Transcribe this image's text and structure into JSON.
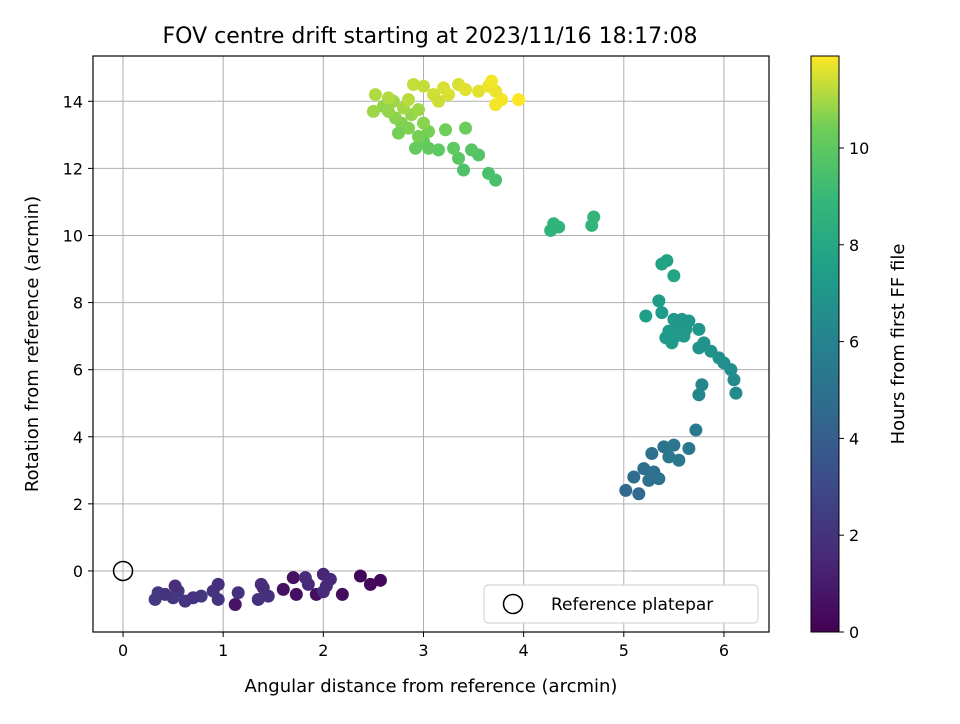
{
  "chart_data": {
    "type": "scatter",
    "title": "FOV centre drift starting at 2023/11/16 18:17:08",
    "xlabel": "Angular distance from reference (arcmin)",
    "ylabel": "Rotation from reference (arcmin)",
    "xlim": [
      -0.3,
      6.45
    ],
    "ylim": [
      -1.82,
      15.35
    ],
    "x_ticks": [
      0,
      1,
      2,
      3,
      4,
      5,
      6
    ],
    "y_ticks": [
      0,
      2,
      4,
      6,
      8,
      10,
      12,
      14
    ],
    "grid": true,
    "colorbar": {
      "label": "Hours from first FF file",
      "range": [
        0,
        11.9
      ],
      "ticks": [
        0,
        2,
        4,
        6,
        8,
        10
      ],
      "colormap": "viridis"
    },
    "legend": {
      "entries": [
        "Reference platepar"
      ],
      "position": "lower-right"
    },
    "reference_point": {
      "x": 0,
      "y": 0
    },
    "points": [
      {
        "x": 2.37,
        "y": -0.15,
        "t": 0.2
      },
      {
        "x": 2.57,
        "y": -0.28,
        "t": 0.3
      },
      {
        "x": 2.47,
        "y": -0.4,
        "t": 0.3
      },
      {
        "x": 2.19,
        "y": -0.7,
        "t": 0.4
      },
      {
        "x": 1.93,
        "y": -0.7,
        "t": 0.5
      },
      {
        "x": 1.73,
        "y": -0.7,
        "t": 0.5
      },
      {
        "x": 1.6,
        "y": -0.55,
        "t": 0.6
      },
      {
        "x": 1.7,
        "y": -0.2,
        "t": 0.6
      },
      {
        "x": 1.12,
        "y": -1.0,
        "t": 0.7
      },
      {
        "x": 2.0,
        "y": -0.1,
        "t": 1.4
      },
      {
        "x": 2.07,
        "y": -0.25,
        "t": 1.5
      },
      {
        "x": 2.03,
        "y": -0.45,
        "t": 1.5
      },
      {
        "x": 2.0,
        "y": -0.62,
        "t": 1.6
      },
      {
        "x": 1.85,
        "y": -0.4,
        "t": 1.6
      },
      {
        "x": 1.82,
        "y": -0.2,
        "t": 1.7
      },
      {
        "x": 1.45,
        "y": -0.75,
        "t": 1.8
      },
      {
        "x": 1.4,
        "y": -0.5,
        "t": 1.8
      },
      {
        "x": 1.35,
        "y": -0.85,
        "t": 1.9
      },
      {
        "x": 1.15,
        "y": -0.65,
        "t": 1.9
      },
      {
        "x": 0.95,
        "y": -0.85,
        "t": 2.0
      },
      {
        "x": 0.9,
        "y": -0.6,
        "t": 2.0
      },
      {
        "x": 0.78,
        "y": -0.75,
        "t": 2.1
      },
      {
        "x": 0.62,
        "y": -0.9,
        "t": 2.1
      },
      {
        "x": 0.55,
        "y": -0.6,
        "t": 2.2
      },
      {
        "x": 0.5,
        "y": -0.8,
        "t": 2.2
      },
      {
        "x": 0.35,
        "y": -0.65,
        "t": 2.3
      },
      {
        "x": 0.32,
        "y": -0.85,
        "t": 2.3
      },
      {
        "x": 0.42,
        "y": -0.7,
        "t": 2.0
      },
      {
        "x": 0.7,
        "y": -0.8,
        "t": 1.9
      },
      {
        "x": 0.95,
        "y": -0.4,
        "t": 1.8
      },
      {
        "x": 0.52,
        "y": -0.45,
        "t": 1.7
      },
      {
        "x": 1.38,
        "y": -0.4,
        "t": 1.7
      },
      {
        "x": 5.02,
        "y": 2.4,
        "t": 4.6
      },
      {
        "x": 5.15,
        "y": 2.3,
        "t": 4.6
      },
      {
        "x": 5.1,
        "y": 2.8,
        "t": 4.7
      },
      {
        "x": 5.2,
        "y": 3.05,
        "t": 4.8
      },
      {
        "x": 5.28,
        "y": 3.5,
        "t": 4.9
      },
      {
        "x": 5.35,
        "y": 2.75,
        "t": 5.0
      },
      {
        "x": 5.25,
        "y": 2.7,
        "t": 5.0
      },
      {
        "x": 5.4,
        "y": 3.7,
        "t": 5.1
      },
      {
        "x": 5.5,
        "y": 3.75,
        "t": 5.2
      },
      {
        "x": 5.55,
        "y": 3.3,
        "t": 5.3
      },
      {
        "x": 5.45,
        "y": 3.4,
        "t": 5.3
      },
      {
        "x": 5.65,
        "y": 3.65,
        "t": 5.4
      },
      {
        "x": 5.72,
        "y": 4.2,
        "t": 5.5
      },
      {
        "x": 5.3,
        "y": 2.95,
        "t": 4.9
      },
      {
        "x": 5.75,
        "y": 5.25,
        "t": 6.1
      },
      {
        "x": 5.78,
        "y": 5.55,
        "t": 6.1
      },
      {
        "x": 6.12,
        "y": 5.3,
        "t": 6.3
      },
      {
        "x": 6.1,
        "y": 5.7,
        "t": 6.4
      },
      {
        "x": 6.07,
        "y": 6.0,
        "t": 6.5
      },
      {
        "x": 6.0,
        "y": 6.2,
        "t": 6.6
      },
      {
        "x": 5.95,
        "y": 6.35,
        "t": 6.7
      },
      {
        "x": 5.87,
        "y": 6.55,
        "t": 6.8
      },
      {
        "x": 5.75,
        "y": 6.65,
        "t": 6.9
      },
      {
        "x": 5.8,
        "y": 6.8,
        "t": 6.9
      },
      {
        "x": 5.75,
        "y": 7.2,
        "t": 7.0
      },
      {
        "x": 5.65,
        "y": 7.45,
        "t": 7.0
      },
      {
        "x": 5.55,
        "y": 7.35,
        "t": 7.1
      },
      {
        "x": 5.5,
        "y": 7.5,
        "t": 7.1
      },
      {
        "x": 5.45,
        "y": 7.15,
        "t": 7.2
      },
      {
        "x": 5.42,
        "y": 6.95,
        "t": 7.2
      },
      {
        "x": 5.48,
        "y": 6.8,
        "t": 7.3
      },
      {
        "x": 5.6,
        "y": 7.0,
        "t": 7.3
      },
      {
        "x": 5.38,
        "y": 7.7,
        "t": 7.4
      },
      {
        "x": 5.35,
        "y": 8.05,
        "t": 7.4
      },
      {
        "x": 5.22,
        "y": 7.6,
        "t": 7.5
      },
      {
        "x": 5.38,
        "y": 9.15,
        "t": 7.7
      },
      {
        "x": 5.43,
        "y": 9.25,
        "t": 7.7
      },
      {
        "x": 5.5,
        "y": 8.8,
        "t": 7.8
      },
      {
        "x": 5.58,
        "y": 7.5,
        "t": 7.0
      },
      {
        "x": 5.62,
        "y": 7.2,
        "t": 7.1
      },
      {
        "x": 5.52,
        "y": 7.0,
        "t": 7.2
      },
      {
        "x": 4.27,
        "y": 10.15,
        "t": 8.6
      },
      {
        "x": 4.3,
        "y": 10.35,
        "t": 8.6
      },
      {
        "x": 4.35,
        "y": 10.25,
        "t": 8.7
      },
      {
        "x": 4.68,
        "y": 10.3,
        "t": 8.8
      },
      {
        "x": 4.7,
        "y": 10.55,
        "t": 8.8
      },
      {
        "x": 3.72,
        "y": 11.65,
        "t": 9.5
      },
      {
        "x": 3.65,
        "y": 11.85,
        "t": 9.5
      },
      {
        "x": 3.4,
        "y": 11.95,
        "t": 9.6
      },
      {
        "x": 3.55,
        "y": 12.4,
        "t": 9.7
      },
      {
        "x": 3.48,
        "y": 12.55,
        "t": 9.8
      },
      {
        "x": 3.35,
        "y": 12.3,
        "t": 9.9
      },
      {
        "x": 3.3,
        "y": 12.6,
        "t": 10.0
      },
      {
        "x": 3.15,
        "y": 12.55,
        "t": 10.0
      },
      {
        "x": 3.05,
        "y": 12.6,
        "t": 10.1
      },
      {
        "x": 3.0,
        "y": 12.8,
        "t": 10.2
      },
      {
        "x": 2.92,
        "y": 12.6,
        "t": 10.2
      },
      {
        "x": 3.42,
        "y": 13.2,
        "t": 10.3
      },
      {
        "x": 3.22,
        "y": 13.15,
        "t": 10.4
      },
      {
        "x": 3.05,
        "y": 13.1,
        "t": 10.5
      },
      {
        "x": 2.95,
        "y": 12.95,
        "t": 10.5
      },
      {
        "x": 2.85,
        "y": 13.2,
        "t": 10.6
      },
      {
        "x": 2.78,
        "y": 13.35,
        "t": 10.6
      },
      {
        "x": 2.72,
        "y": 13.5,
        "t": 10.7
      },
      {
        "x": 2.65,
        "y": 13.7,
        "t": 10.8
      },
      {
        "x": 2.6,
        "y": 13.85,
        "t": 10.8
      },
      {
        "x": 2.7,
        "y": 14.0,
        "t": 10.9
      },
      {
        "x": 2.5,
        "y": 13.7,
        "t": 10.9
      },
      {
        "x": 2.75,
        "y": 13.05,
        "t": 10.5
      },
      {
        "x": 2.88,
        "y": 13.6,
        "t": 10.8
      },
      {
        "x": 3.0,
        "y": 13.35,
        "t": 10.7
      },
      {
        "x": 2.95,
        "y": 13.75,
        "t": 10.9
      },
      {
        "x": 2.8,
        "y": 13.8,
        "t": 11.0
      },
      {
        "x": 2.52,
        "y": 14.2,
        "t": 11.1
      },
      {
        "x": 2.65,
        "y": 14.1,
        "t": 11.1
      },
      {
        "x": 2.85,
        "y": 14.05,
        "t": 11.2
      },
      {
        "x": 2.9,
        "y": 14.5,
        "t": 11.3
      },
      {
        "x": 3.0,
        "y": 14.45,
        "t": 11.3
      },
      {
        "x": 3.1,
        "y": 14.2,
        "t": 11.4
      },
      {
        "x": 3.15,
        "y": 14.0,
        "t": 11.4
      },
      {
        "x": 3.2,
        "y": 14.4,
        "t": 11.5
      },
      {
        "x": 3.35,
        "y": 14.5,
        "t": 11.5
      },
      {
        "x": 3.42,
        "y": 14.35,
        "t": 11.6
      },
      {
        "x": 3.55,
        "y": 14.3,
        "t": 11.6
      },
      {
        "x": 3.65,
        "y": 14.45,
        "t": 11.7
      },
      {
        "x": 3.72,
        "y": 14.3,
        "t": 11.7
      },
      {
        "x": 3.68,
        "y": 14.6,
        "t": 11.8
      },
      {
        "x": 3.78,
        "y": 14.05,
        "t": 11.8
      },
      {
        "x": 3.72,
        "y": 13.9,
        "t": 11.8
      },
      {
        "x": 3.95,
        "y": 14.05,
        "t": 11.9
      },
      {
        "x": 3.25,
        "y": 14.2,
        "t": 11.5
      }
    ]
  }
}
